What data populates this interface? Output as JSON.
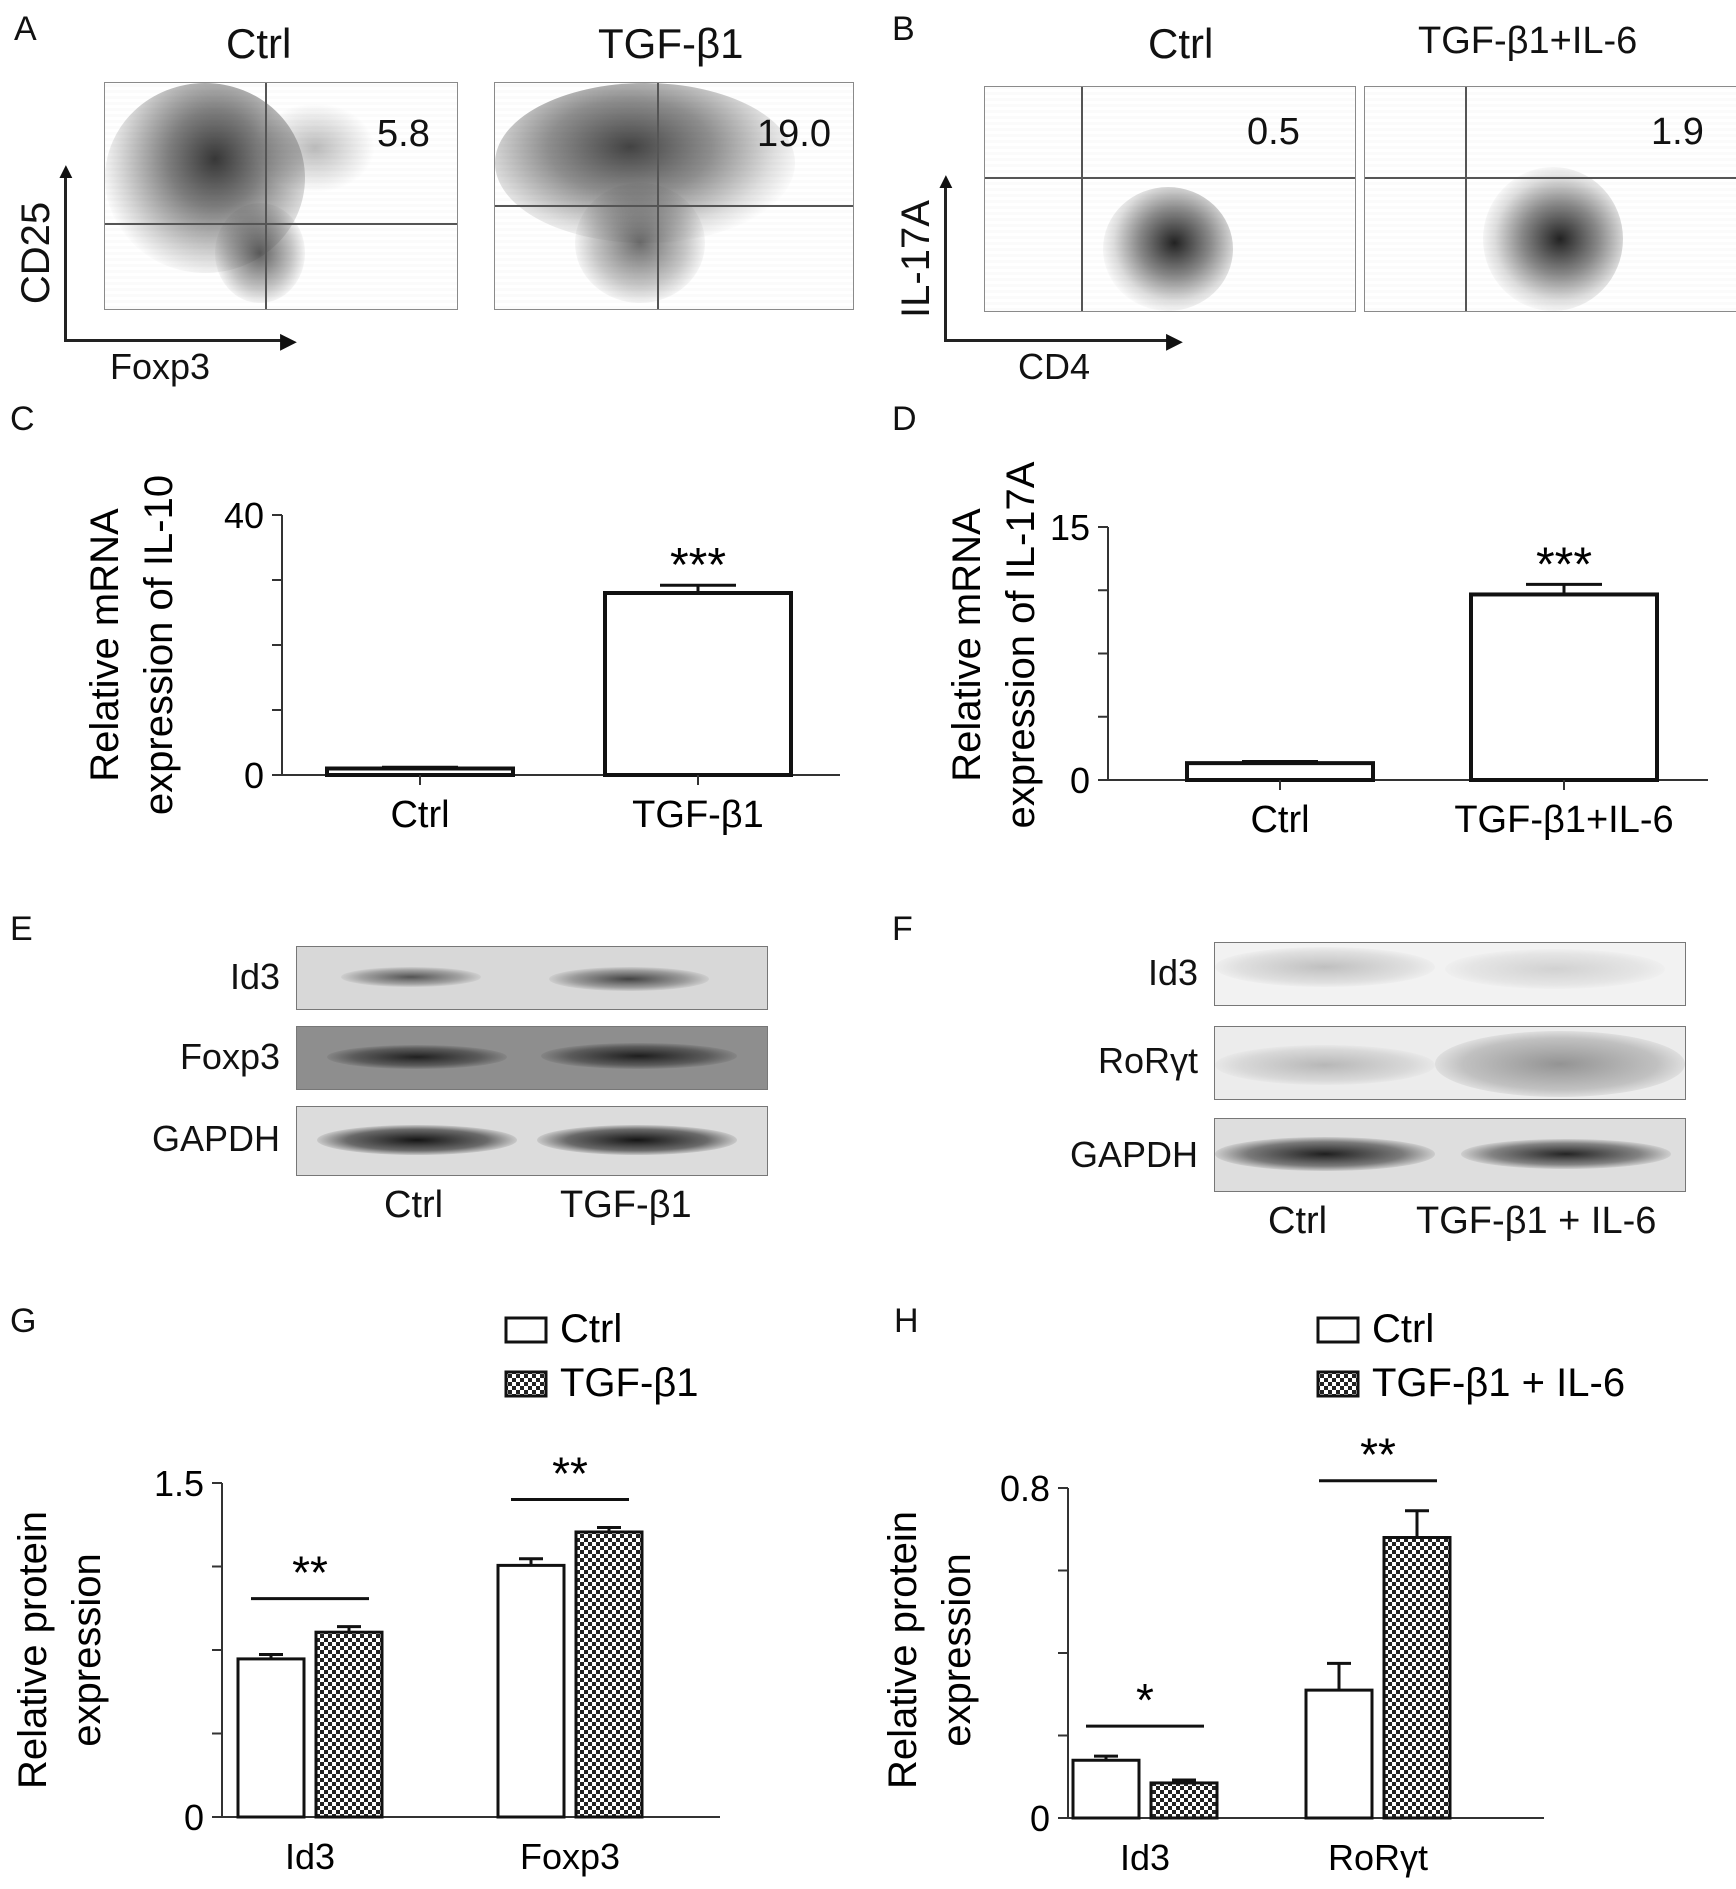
{
  "panels": {
    "A": {
      "letter": "A",
      "plots": [
        {
          "title": "Ctrl",
          "value": "5.8"
        },
        {
          "title": "TGF-β1",
          "value": "19.0"
        }
      ],
      "y_axis": "CD25",
      "x_axis": "Foxp3"
    },
    "B": {
      "letter": "B",
      "plots": [
        {
          "title": "Ctrl",
          "value": "0.5"
        },
        {
          "title": "TGF-β1+IL-6",
          "value": "1.9"
        }
      ],
      "y_axis": "IL-17A",
      "x_axis": "CD4"
    },
    "E": {
      "letter": "E",
      "rows": [
        "Id3",
        "Foxp3",
        "GAPDH"
      ],
      "lanes": [
        "Ctrl",
        "TGF-β1"
      ]
    },
    "F": {
      "letter": "F",
      "rows": [
        "Id3",
        "RoRγt",
        "GAPDH"
      ],
      "lanes": [
        "Ctrl",
        "TGF-β1 + IL-6"
      ]
    }
  },
  "chart_data": [
    {
      "panel": "C",
      "type": "bar",
      "categories": [
        "Ctrl",
        "TGF-β1"
      ],
      "values": [
        1,
        28
      ],
      "errors": [
        0.2,
        1.2
      ],
      "significance": [
        "",
        "***"
      ],
      "ylabel": "Relative mRNA\nexpression of IL-10",
      "ylim": [
        0,
        40
      ],
      "yticks": [
        "0",
        "40"
      ],
      "colors": {
        "bar": "#ffffff",
        "edge": "#111111"
      }
    },
    {
      "panel": "D",
      "type": "bar",
      "categories": [
        "Ctrl",
        "TGF-β1+IL-6"
      ],
      "values": [
        1,
        11
      ],
      "errors": [
        0.1,
        0.6
      ],
      "significance": [
        "",
        "***"
      ],
      "ylabel": "Relative mRNA\nexpression of IL-17A",
      "ylim": [
        0,
        15
      ],
      "yticks": [
        "0",
        "15"
      ],
      "colors": {
        "bar": "#ffffff",
        "edge": "#111111"
      }
    },
    {
      "panel": "G",
      "type": "bar",
      "categories": [
        "Id3",
        "Foxp3"
      ],
      "series": [
        {
          "name": "Ctrl",
          "values": [
            0.71,
            1.13
          ],
          "errors": [
            0.02,
            0.03
          ],
          "pattern": "open"
        },
        {
          "name": "TGF-β1",
          "values": [
            0.83,
            1.28
          ],
          "errors": [
            0.025,
            0.02
          ],
          "pattern": "checker"
        }
      ],
      "significance": [
        "**",
        "**"
      ],
      "ylabel": "Relative protein\nexpression",
      "ylim": [
        0,
        1.5
      ],
      "yticks": [
        "0",
        "1.5"
      ],
      "legend": "top-right"
    },
    {
      "panel": "H",
      "type": "bar",
      "categories": [
        "Id3",
        "RoRγt"
      ],
      "series": [
        {
          "name": "Ctrl",
          "values": [
            0.14,
            0.31
          ],
          "errors": [
            0.01,
            0.065
          ],
          "pattern": "open"
        },
        {
          "name": "TGF-β1 + IL-6",
          "values": [
            0.085,
            0.68
          ],
          "errors": [
            0.007,
            0.065
          ],
          "pattern": "checker"
        }
      ],
      "significance": [
        "*",
        "**"
      ],
      "ylabel": "Relative protein\nexpression",
      "ylim": [
        0,
        0.8
      ],
      "yticks": [
        "0",
        "0.8"
      ],
      "legend": "top-right"
    }
  ]
}
